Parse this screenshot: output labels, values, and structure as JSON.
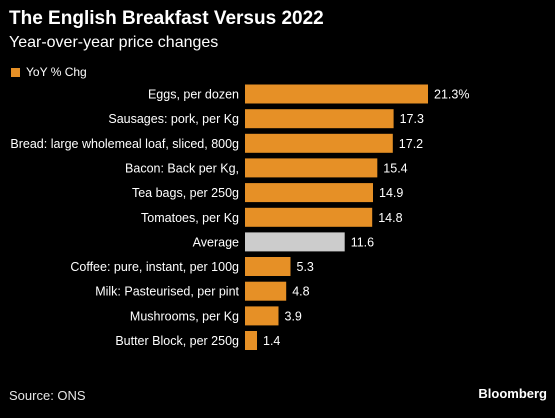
{
  "header": {
    "title": "The English Breakfast Versus 2022",
    "subtitle": "Year-over-year price changes"
  },
  "legend": {
    "label": "YoY % Chg"
  },
  "colors": {
    "bar": "#e69026",
    "average_bar": "#cccccc",
    "background": "#000000",
    "text": "#ffffff"
  },
  "footer": {
    "source": "Source: ONS",
    "brand": "Bloomberg"
  },
  "chart_data": {
    "type": "bar",
    "orientation": "horizontal",
    "categories": [
      "Eggs, per dozen",
      "Sausages: pork, per Kg",
      "Bread: large wholemeal loaf, sliced, 800g",
      "Bacon: Back per Kg,",
      "Tea bags, per 250g",
      "Tomatoes, per Kg",
      "Average",
      "Coffee: pure, instant, per 100g",
      "Milk: Pasteurised, per pint",
      "Mushrooms, per Kg",
      "Butter Block, per 250g"
    ],
    "values": [
      21.3,
      17.3,
      17.2,
      15.4,
      14.9,
      14.8,
      11.6,
      5.3,
      4.8,
      3.9,
      1.4
    ],
    "value_labels": [
      "21.3%",
      "17.3",
      "17.2",
      "15.4",
      "14.9",
      "14.8",
      "11.6",
      "5.3",
      "4.8",
      "3.9",
      "1.4"
    ],
    "highlight_category": "Average",
    "series": [
      {
        "name": "YoY % Chg",
        "values": [
          21.3,
          17.3,
          17.2,
          15.4,
          14.9,
          14.8,
          11.6,
          5.3,
          4.8,
          3.9,
          1.4
        ]
      }
    ],
    "title": "The English Breakfast Versus 2022",
    "subtitle": "Year-over-year price changes",
    "xlim": [
      0,
      21.3
    ],
    "grid": false,
    "legend_position": "top-left"
  }
}
